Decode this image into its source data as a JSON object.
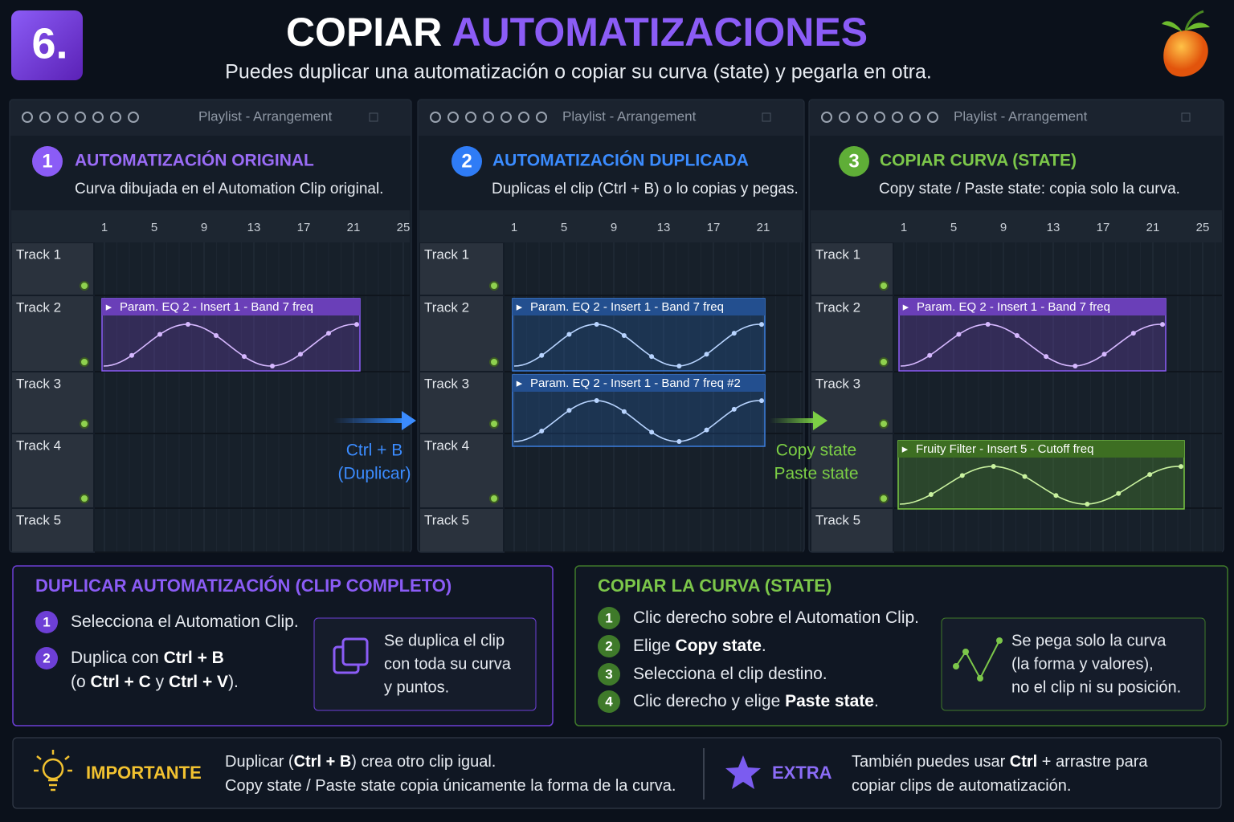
{
  "header": {
    "step": "6.",
    "title": [
      "COPIAR",
      "AUTOMATIZACIONES"
    ],
    "subtitle": "Puedes duplicar una automatización o copiar su curva (state) y pegarla en otra."
  },
  "panels": [
    {
      "toolbar": "Playlist - Arrangement",
      "number": "1",
      "title": "AUTOMATIZACIÓN ORIGINAL",
      "description": "Curva dibujada en el Automation Clip original.",
      "ruler": [
        1,
        5,
        9,
        13,
        17,
        21,
        25
      ],
      "tracks": [
        "Track 1",
        "Track 2",
        "Track 3",
        "Track 4",
        "Track 5"
      ],
      "clips": [
        "Param. EQ 2 - Insert 1 - Band 7 freq"
      ]
    },
    {
      "toolbar": "Playlist - Arrangement",
      "number": "2",
      "title": "AUTOMATIZACIÓN DUPLICADA",
      "description": "Duplicas el clip (Ctrl + B) o lo copias y pegas.",
      "ruler": [
        1,
        5,
        9,
        13,
        17,
        21
      ],
      "tracks": [
        "Track 1",
        "Track 2",
        "Track 3",
        "Track 4",
        "Track 5"
      ],
      "clips": [
        "Param. EQ 2 - Insert 1 - Band 7 freq",
        "Param. EQ 2 - Insert 1 - Band 7 freq #2"
      ]
    },
    {
      "toolbar": "Playlist - Arrangement",
      "number": "3",
      "title": "COPIAR CURVA (STATE)",
      "description": "Copy state / Paste state: copia solo la curva.",
      "ruler": [
        1,
        5,
        9,
        13,
        17,
        21,
        25
      ],
      "tracks": [
        "Track 1",
        "Track 2",
        "Track 3",
        null,
        "Track 5"
      ],
      "clips": [
        "Param. EQ 2 - Insert 1 - Band 7 freq",
        "Fruity Filter - Insert 5 - Cutoff freq"
      ]
    }
  ],
  "arrows": [
    [
      "Ctrl + B",
      "(Duplicar)"
    ],
    [
      "Copy state",
      "Paste state"
    ]
  ],
  "duplicate": {
    "title": "DUPLICAR AUTOMATIZACIÓN (CLIP COMPLETO)",
    "steps": [
      {
        "number": "1",
        "lines": [
          [
            "Selecciona el Automation Clip."
          ]
        ]
      },
      {
        "number": "2",
        "lines": [
          [
            "Duplica con ",
            "Ctrl + B"
          ],
          [
            "(o ",
            "Ctrl + C",
            " y ",
            "Ctrl + V",
            ")."
          ]
        ]
      }
    ],
    "note": [
      "Se duplica el clip",
      "con toda su curva",
      "y puntos."
    ]
  },
  "copy": {
    "title": "COPIAR LA CURVA (STATE)",
    "steps": [
      {
        "number": "1",
        "lines": [
          [
            "Clic derecho sobre el Automation Clip."
          ]
        ]
      },
      {
        "number": "2",
        "lines": [
          [
            "Elige ",
            "Copy state",
            "."
          ]
        ]
      },
      {
        "number": "3",
        "lines": [
          [
            "Selecciona el clip destino."
          ]
        ]
      },
      {
        "number": "4",
        "lines": [
          [
            "Clic derecho y elige ",
            "Paste state",
            "."
          ]
        ]
      }
    ],
    "note": [
      "Se pega solo la curva",
      "(la forma y valores),",
      "no el clip ni su posición."
    ]
  },
  "footer": {
    "important": {
      "label": "IMPORTANTE",
      "lines": [
        [
          "Duplicar (",
          "Ctrl + B",
          ") crea otro clip igual."
        ],
        [
          "Copy state / Paste state copia únicamente la forma de la curva."
        ]
      ]
    },
    "extra": {
      "label": "EXTRA",
      "lines": [
        [
          "También puedes usar ",
          "Ctrl",
          " + arrastre para"
        ],
        [
          "copiar clips de automatización."
        ]
      ]
    }
  }
}
